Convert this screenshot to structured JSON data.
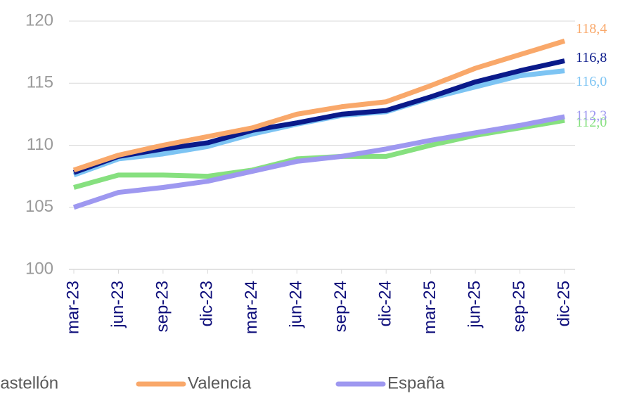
{
  "chart_data": {
    "type": "line",
    "categories": [
      "mar-23",
      "jun-23",
      "sep-23",
      "dic-23",
      "mar-24",
      "jun-24",
      "sep-24",
      "dic-24",
      "mar-25",
      "jun-25",
      "sep-25",
      "dic-25"
    ],
    "series": [
      {
        "name": "Castellón",
        "color": "#86e07f",
        "values": [
          106.6,
          107.6,
          107.6,
          107.5,
          108.0,
          108.9,
          109.1,
          109.1,
          110.0,
          110.8,
          111.4,
          112.0
        ],
        "value_labels": [
          null,
          null,
          null,
          null,
          null,
          null,
          null,
          null,
          null,
          null,
          null,
          "112,0"
        ]
      },
      {
        "name": "Valencia",
        "color": "#f9a86a",
        "values": [
          108.0,
          109.2,
          110.0,
          110.7,
          111.4,
          112.5,
          113.1,
          113.5,
          114.8,
          116.2,
          117.3,
          118.4
        ],
        "value_labels": [
          null,
          null,
          null,
          null,
          null,
          null,
          null,
          null,
          null,
          null,
          null,
          "118,4"
        ]
      },
      {
        "name": "España",
        "color": "#9e98f0",
        "values": [
          105.0,
          106.2,
          106.6,
          107.1,
          107.9,
          108.7,
          109.1,
          109.7,
          110.4,
          111.0,
          111.6,
          112.3
        ],
        "value_labels": [
          null,
          null,
          null,
          null,
          null,
          null,
          null,
          null,
          null,
          null,
          null,
          "112,3"
        ]
      },
      {
        "color": "#0a1a8a",
        "values": [
          107.8,
          109.1,
          109.7,
          110.2,
          111.2,
          111.8,
          112.5,
          112.8,
          113.9,
          115.1,
          116.0,
          116.8
        ],
        "value_labels": [
          null,
          null,
          null,
          null,
          null,
          null,
          null,
          null,
          null,
          null,
          null,
          "116,8"
        ]
      },
      {
        "color": "#7dc4f3",
        "values": [
          107.6,
          108.9,
          109.3,
          109.9,
          110.9,
          111.7,
          112.4,
          112.7,
          113.8,
          114.7,
          115.6,
          116.0
        ],
        "value_labels": [
          null,
          null,
          null,
          null,
          null,
          null,
          null,
          null,
          null,
          null,
          null,
          "116,0"
        ]
      }
    ],
    "ylim": [
      100,
      120
    ],
    "yticks": [
      100,
      105,
      110,
      115,
      120
    ],
    "grid": true
  }
}
